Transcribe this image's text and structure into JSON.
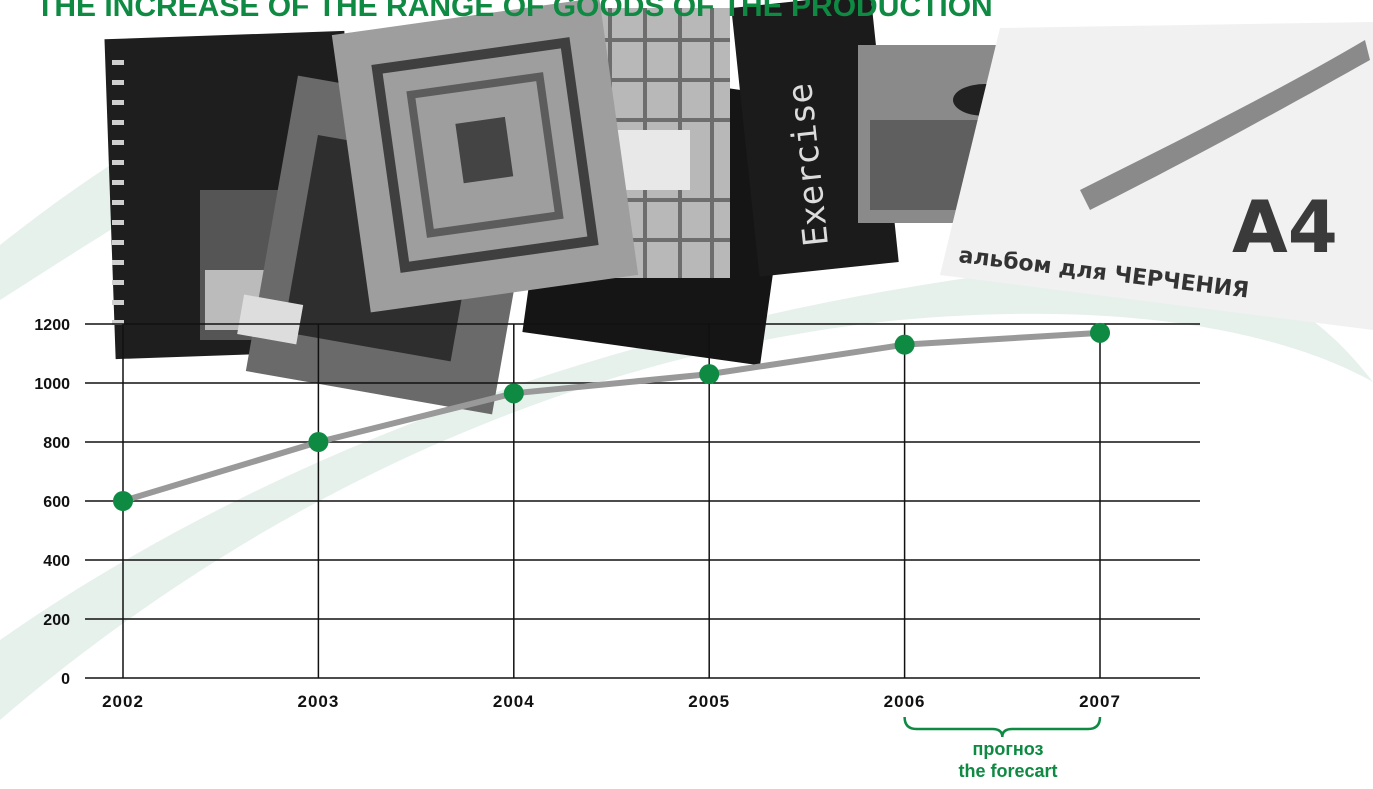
{
  "title": "THE INCREASE OF THE RANGE OF GOODS OF THE PRODUCTION",
  "forecast": {
    "line1": "прогноз",
    "line2": "the forecart"
  },
  "images": {
    "cover_exercise_text": "Exercise",
    "cover_a4_text": "A4",
    "cover_drawing_text": "альбом для ЧЕРЧЕНИЯ"
  },
  "colors": {
    "accent": "#0f8a43",
    "line": "#999999",
    "swoosh": "#e6f1ec",
    "grid": "#111111"
  },
  "chart_data": {
    "type": "line",
    "title": "THE INCREASE OF THE RANGE OF GOODS OF THE PRODUCTION",
    "xlabel": "",
    "ylabel": "",
    "categories": [
      "2002",
      "2003",
      "2004",
      "2005",
      "2006",
      "2007"
    ],
    "values": [
      600,
      800,
      965,
      1030,
      1130,
      1170
    ],
    "ylim": [
      0,
      1200
    ],
    "yticks": [
      0,
      200,
      400,
      600,
      800,
      1000,
      1200
    ],
    "forecast_categories": [
      "2006",
      "2007"
    ],
    "grid": true,
    "legend": "none"
  }
}
